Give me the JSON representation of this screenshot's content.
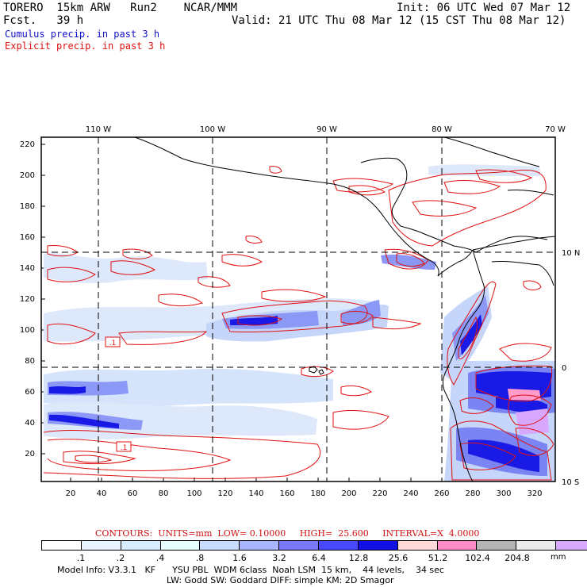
{
  "header": {
    "model_line": "TORERO  15km ARW   Run2    NCAR/MMM",
    "init_line": "Init: 06 UTC Wed 07 Mar 12",
    "fcst_line": "Fcst.   39 h",
    "valid_line": "Valid: 21 UTC Thu 08 Mar 12 (15 CST Thu 08 Mar 12)",
    "cumulus_label": "Cumulus precip. in past 3 h",
    "explicit_label": "Explicit precip. in past 3 h"
  },
  "map": {
    "top_lon_labels": [
      "110 W",
      "100 W",
      "90 W",
      "80 W",
      "70 W"
    ],
    "right_lat_labels": [
      "10 N",
      "0",
      "10 S"
    ],
    "left_y_ticks": [
      "220",
      "200",
      "180",
      "160",
      "140",
      "120",
      "100",
      "80",
      "60",
      "40",
      "20"
    ],
    "bottom_x_ticks": [
      "20",
      "40",
      "60",
      "80",
      "100",
      "120",
      "140",
      "160",
      "180",
      "200",
      "220",
      "240",
      "260",
      "280",
      "300",
      "320"
    ],
    "contour_labels": [
      ".1",
      ".1"
    ],
    "colors": {
      "explicit_contour": "#e01010",
      "cumulus_shade": "#2020e0",
      "grid": "#000000",
      "coast": "#000000"
    }
  },
  "contours_line": "CONTOURS:  UNITS=mm  LOW= 0.10000     HIGH=  25.600     INTERVAL=X  4.0000",
  "legend": {
    "ticks": [
      ".1",
      ".2",
      ".4",
      ".8",
      "1.6",
      "3.2",
      "6.4",
      "12.8",
      "25.6",
      "51.2",
      "102.4",
      "204.8"
    ],
    "unit": "mm",
    "colors": [
      "#ffffff",
      "#e8f4ff",
      "#d8eeff",
      "#e6ffff",
      "#c8dcff",
      "#a8b4ff",
      "#7878ff",
      "#4848ff",
      "#1010e6",
      "#ffd8d8",
      "#ff8cc8",
      "#b4b4b4",
      "#ececec",
      "#d8a8ff"
    ]
  },
  "info": {
    "line1": "Model Info: V3.3.1   KF      YSU PBL  WDM 6class  Noah LSM  15 km,    44 levels,    34 sec",
    "line2": "LW: Godd SW: Goddard DIFF: simple KM: 2D Smagor"
  }
}
